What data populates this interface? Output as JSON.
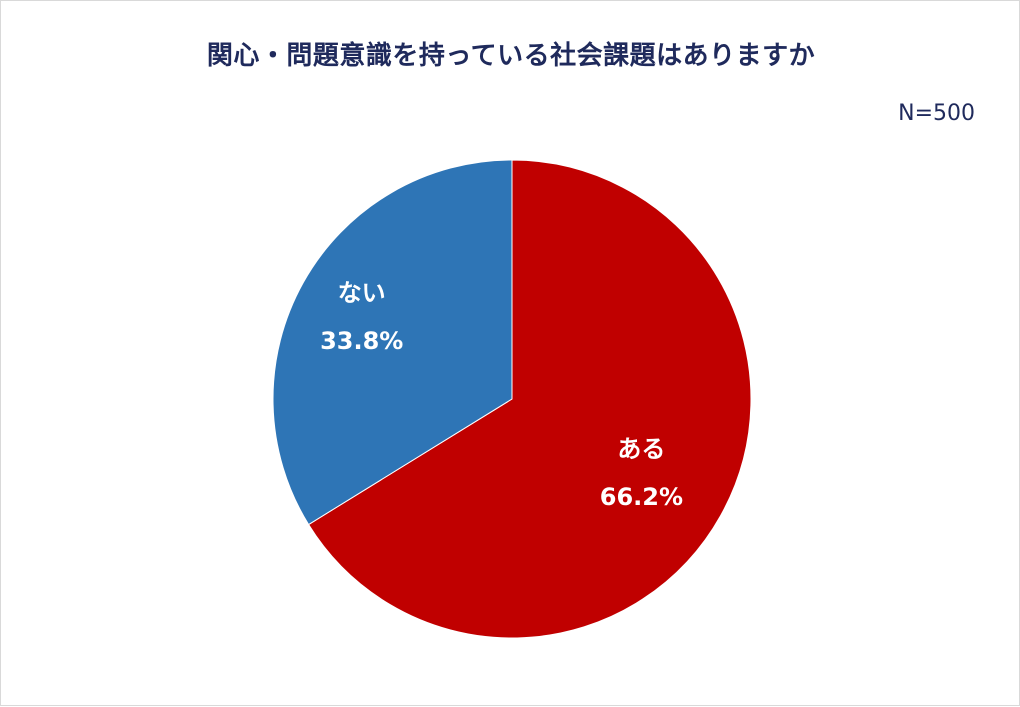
{
  "chart_data": {
    "type": "pie",
    "title": "関心・問題意識を持っている社会課題はありますか",
    "sample_size_label": "N=500",
    "slices": [
      {
        "name": "ある",
        "value": 66.2,
        "value_label": "66.2%",
        "color": "#c00000"
      },
      {
        "name": "ない",
        "value": 33.8,
        "value_label": "33.8%",
        "color": "#2e75b6"
      }
    ],
    "start": "12 o'clock",
    "direction": "clockwise",
    "legend": "none (labels inside slices)"
  }
}
